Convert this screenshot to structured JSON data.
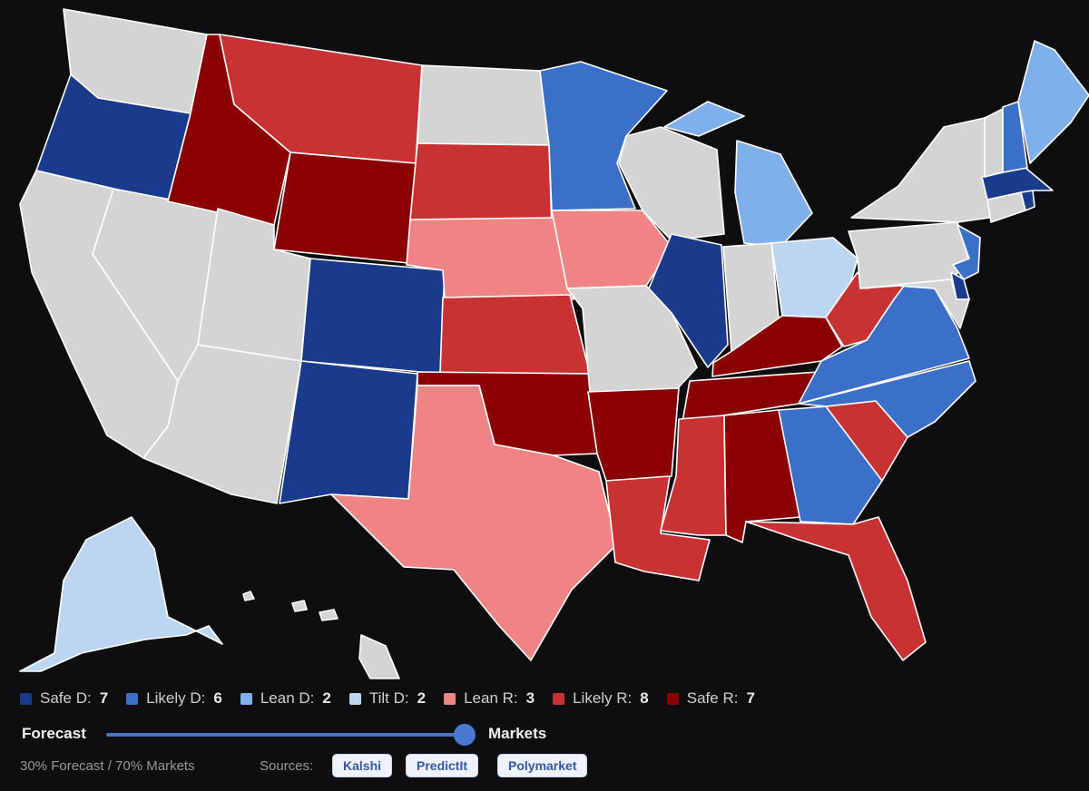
{
  "colors": {
    "safe_d": "#1a3a8c",
    "likely_d": "#3a70c8",
    "lean_d": "#7fb0ec",
    "tilt_d": "#bcd6f2",
    "lean_r": "#f08484",
    "likely_r": "#c83232",
    "safe_r": "#8b0000",
    "none": "#d4d4d4"
  },
  "legend": [
    {
      "label": "Safe D:",
      "count": "7",
      "color": "#1a3a8c"
    },
    {
      "label": "Likely D:",
      "count": "6",
      "color": "#3a70c8"
    },
    {
      "label": "Lean D:",
      "count": "2",
      "color": "#7fb0ec"
    },
    {
      "label": "Tilt D:",
      "count": "2",
      "color": "#bcd6f2"
    },
    {
      "label": "Lean R:",
      "count": "3",
      "color": "#f08484"
    },
    {
      "label": "Likely R:",
      "count": "8",
      "color": "#c83232"
    },
    {
      "label": "Safe R:",
      "count": "7",
      "color": "#8b0000"
    }
  ],
  "slider": {
    "left_label": "Forecast",
    "right_label": "Markets",
    "value_fraction": 0.7
  },
  "footer": {
    "ratio_text": "30% Forecast / 70% Markets",
    "sources_label": "Sources:",
    "sources": [
      "Kalshi",
      "PredictIt",
      "Polymarket"
    ]
  },
  "states": {
    "WA": "none",
    "OR": "safe_d",
    "CA": "none",
    "NV": "none",
    "ID": "safe_r",
    "MT": "likely_r",
    "WY": "safe_r",
    "UT": "none",
    "AZ": "none",
    "CO": "safe_d",
    "NM": "safe_d",
    "ND": "none",
    "SD": "likely_r",
    "NE": "lean_r",
    "KS": "likely_r",
    "OK": "safe_r",
    "TX": "lean_r",
    "MN": "likely_d",
    "IA": "lean_r",
    "MO": "none",
    "AR": "safe_r",
    "LA": "likely_r",
    "WI": "none",
    "IL": "safe_d",
    "MI": "lean_d",
    "IN": "none",
    "OH": "tilt_d",
    "KY": "safe_r",
    "TN": "safe_r",
    "MS": "likely_r",
    "AL": "safe_r",
    "GA": "likely_d",
    "FL": "likely_r",
    "SC": "likely_r",
    "NC": "likely_d",
    "VA": "likely_d",
    "WV": "likely_r",
    "PA": "none",
    "NY": "none",
    "VT": "none",
    "NH": "likely_d",
    "ME": "lean_d",
    "MA": "safe_d",
    "RI": "safe_d",
    "CT": "none",
    "NJ": "likely_d",
    "DE": "safe_d",
    "MD": "none",
    "AK": "tilt_d",
    "HI": "none"
  }
}
